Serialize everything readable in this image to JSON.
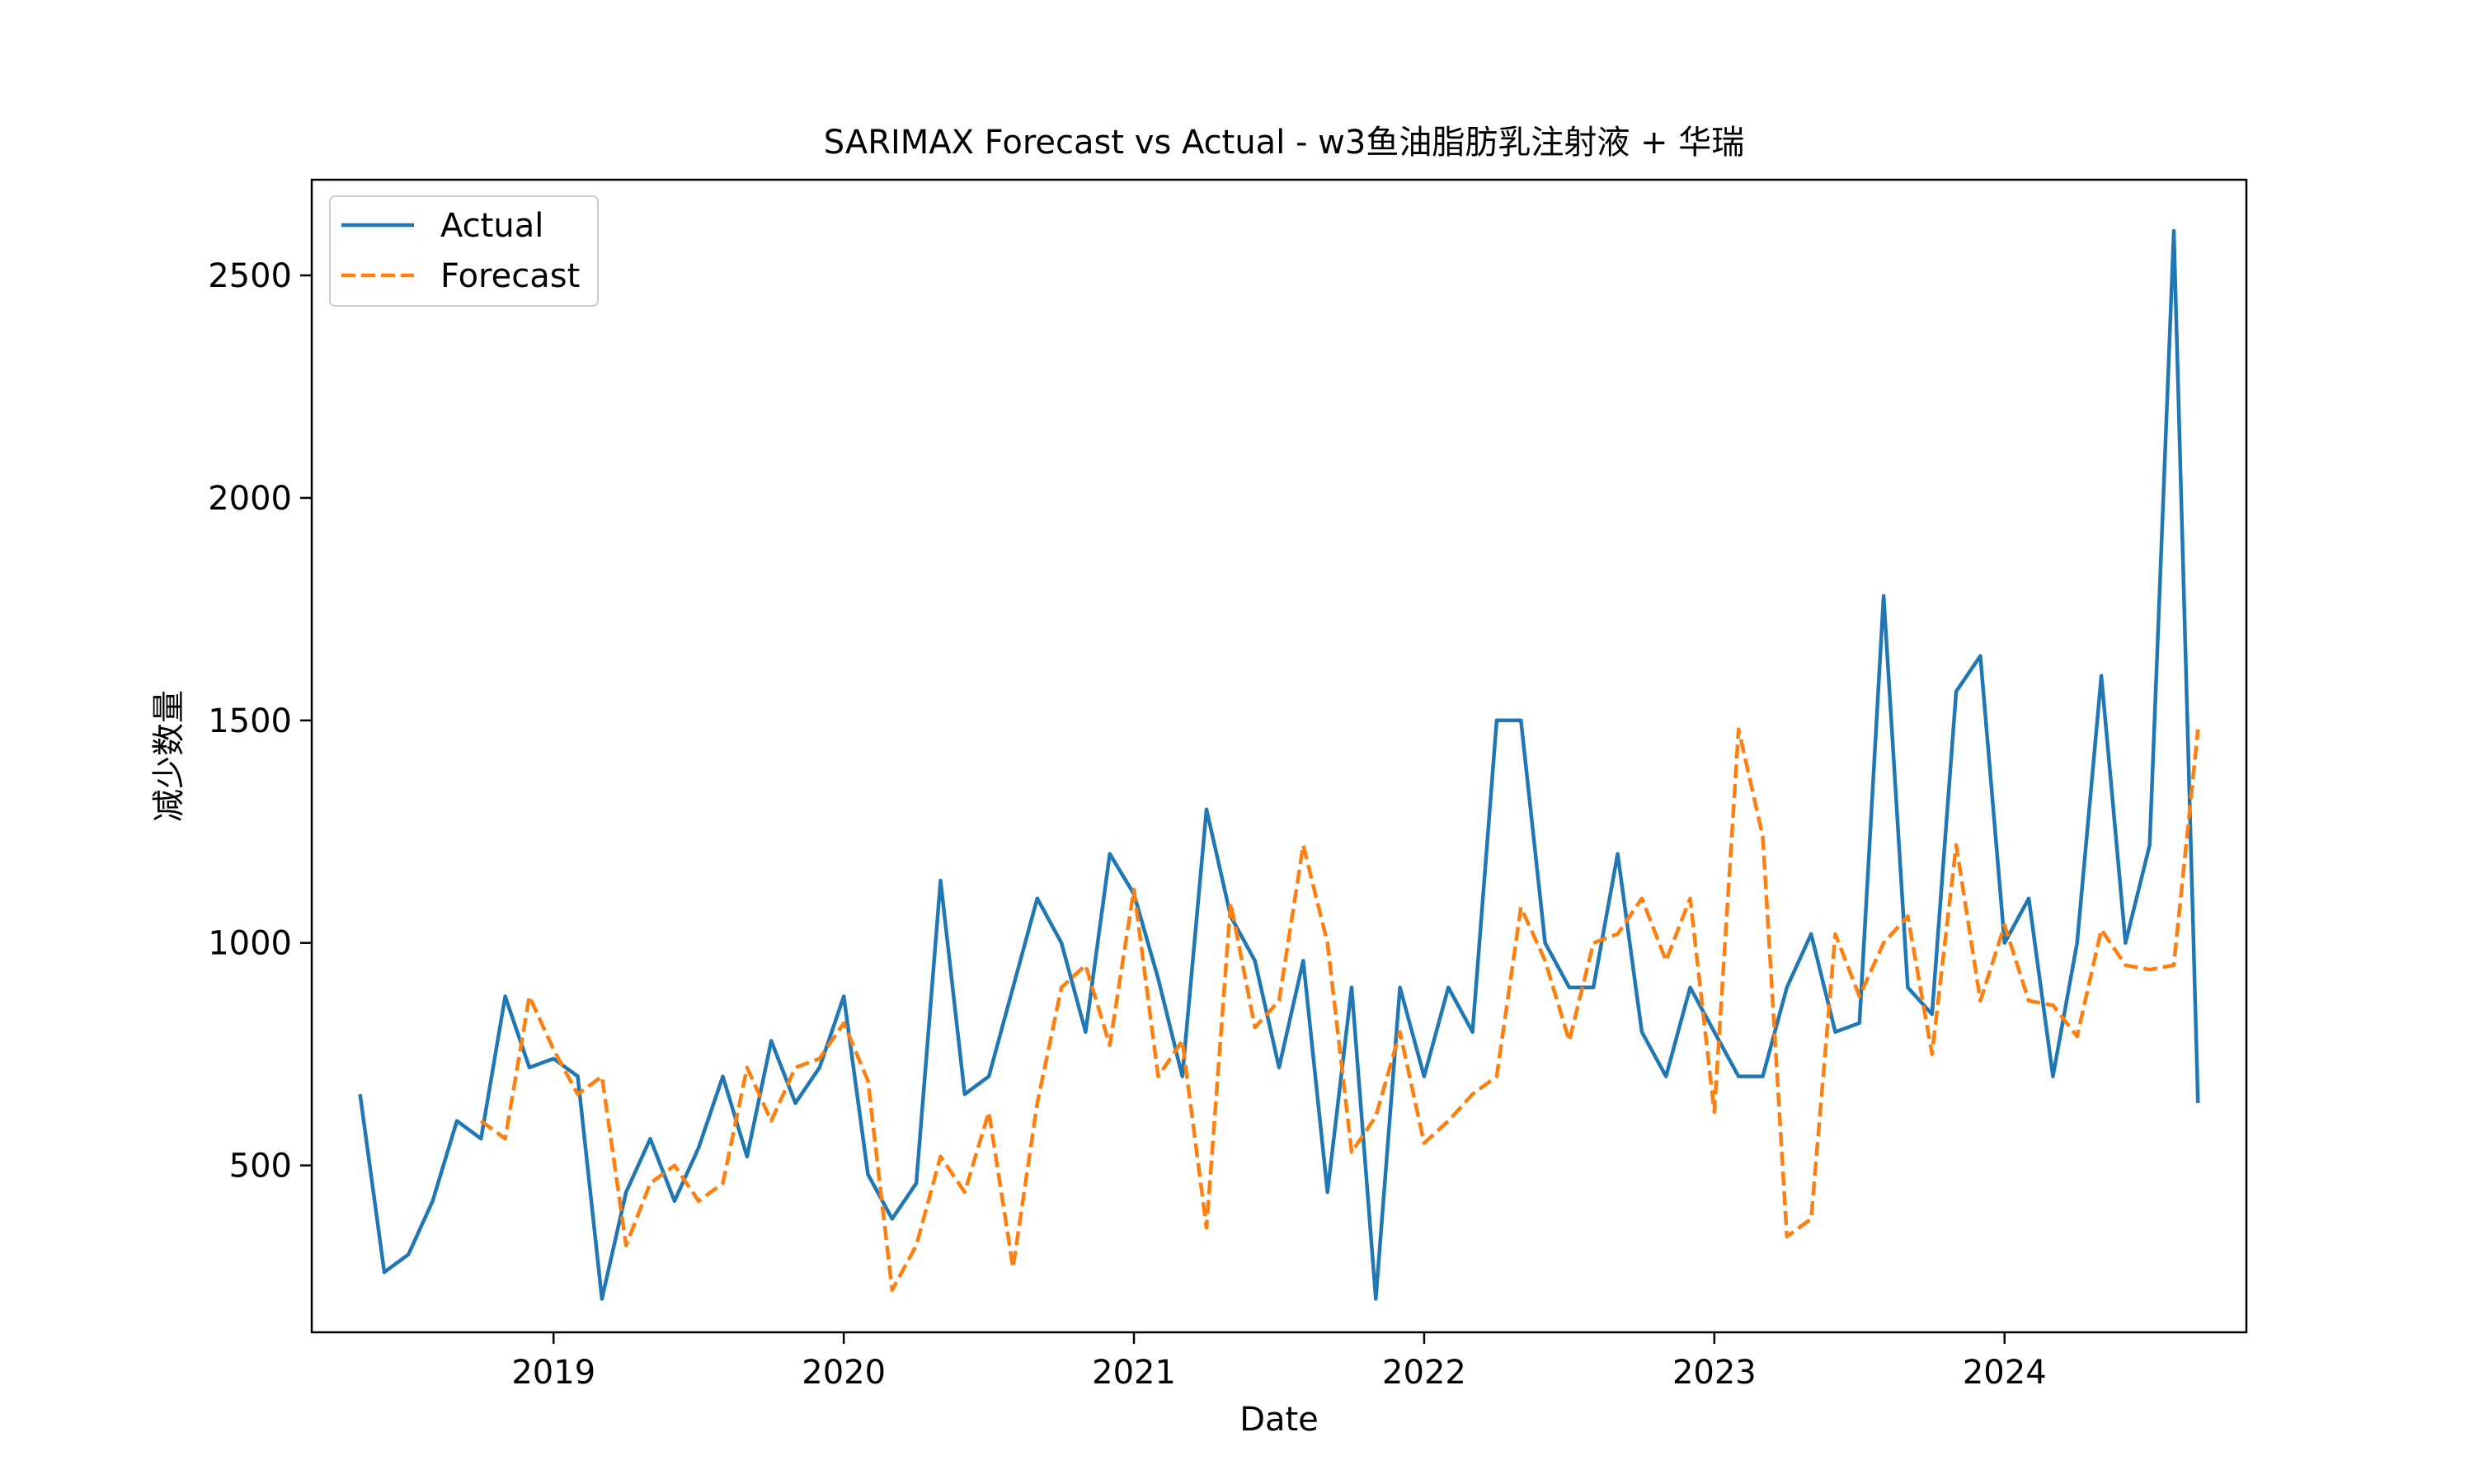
{
  "chart_data": {
    "type": "line",
    "title": "SARIMAX Forecast vs Actual - w3鱼油脂肪乳注射液 + 华瑞",
    "xlabel": "Date",
    "ylabel": "减少数量",
    "x_ticks": [
      "2019",
      "2020",
      "2021",
      "2022",
      "2023",
      "2024"
    ],
    "y_ticks": [
      500,
      1000,
      1500,
      2000,
      2500
    ],
    "xlim": [
      "2018-03",
      "2024-11"
    ],
    "ylim": [
      125,
      2715
    ],
    "legend_position": "upper-left",
    "series": [
      {
        "name": "Actual",
        "color": "#1f77b4",
        "dash": "solid",
        "start": "2018-05",
        "values": [
          660,
          260,
          300,
          420,
          600,
          560,
          880,
          720,
          740,
          700,
          200,
          440,
          560,
          420,
          540,
          700,
          520,
          780,
          640,
          720,
          880,
          480,
          380,
          460,
          1140,
          660,
          700,
          900,
          1100,
          1000,
          800,
          1200,
          1110,
          920,
          700,
          1300,
          1060,
          960,
          720,
          960,
          440,
          900,
          200,
          900,
          700,
          900,
          800,
          1500,
          1500,
          1000,
          900,
          900,
          1200,
          800,
          700,
          900,
          800,
          700,
          700,
          900,
          1020,
          800,
          820,
          1780,
          900,
          840,
          1565,
          1645,
          1000,
          1100,
          700,
          1000,
          1600,
          1000,
          1220,
          2600,
          640
        ]
      },
      {
        "name": "Forecast",
        "color": "#ff7f0e",
        "dash": "dashed",
        "start": "2018-10",
        "values": [
          600,
          560,
          880,
          760,
          660,
          700,
          320,
          460,
          500,
          420,
          460,
          720,
          600,
          720,
          740,
          820,
          690,
          220,
          320,
          520,
          440,
          620,
          270,
          640,
          900,
          950,
          770,
          1120,
          700,
          780,
          360,
          1090,
          810,
          870,
          1220,
          1000,
          530,
          610,
          800,
          550,
          600,
          660,
          700,
          1080,
          960,
          780,
          1000,
          1020,
          1100,
          960,
          1100,
          620,
          1480,
          1240,
          340,
          380,
          1020,
          880,
          1000,
          1060,
          750,
          1220,
          870,
          1040,
          870,
          860,
          790,
          1030,
          950,
          940,
          950,
          1480
        ]
      }
    ]
  }
}
